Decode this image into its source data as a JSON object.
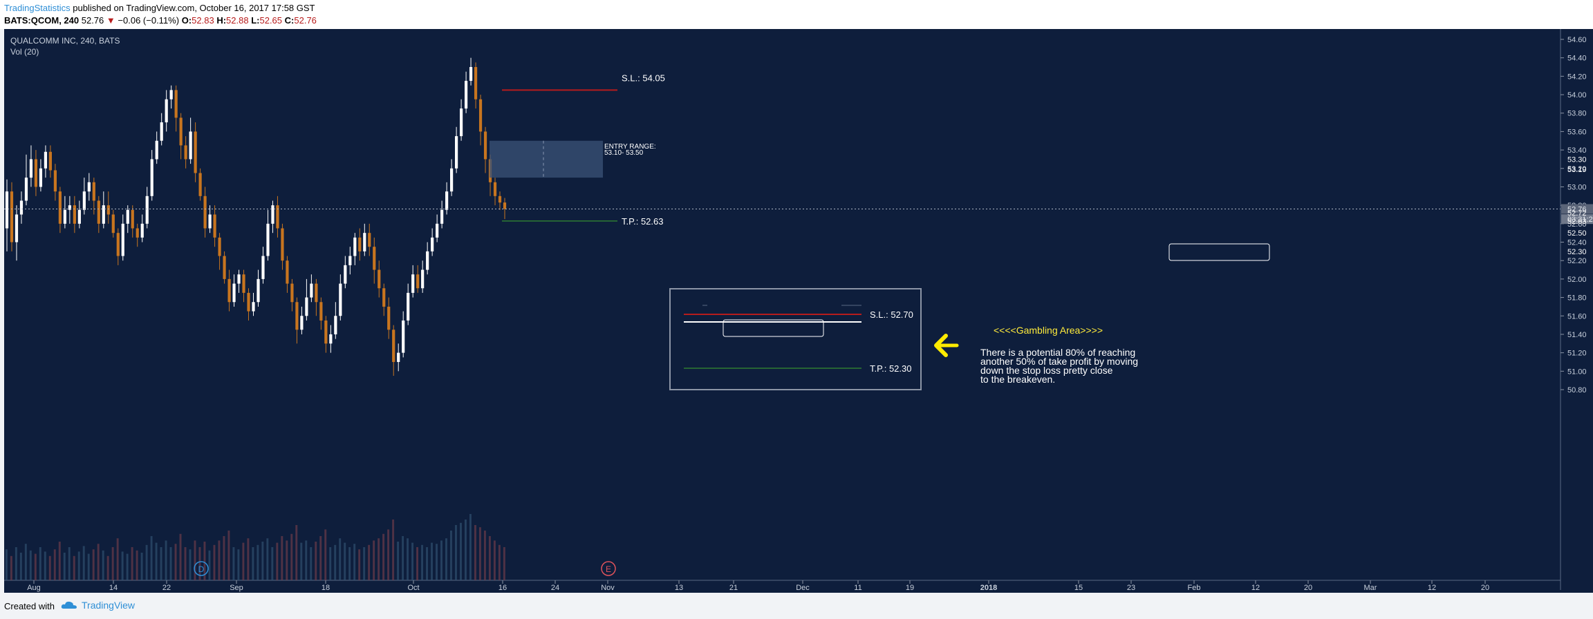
{
  "header": {
    "publisher": "TradingStatistics",
    "published_text": "published on TradingView.com, October 16, 2017 17:58 GST",
    "symbol": "BATS:QCOM, 240",
    "last": "52.76",
    "change": "−0.06 (−0.11%)",
    "o_label": "O:",
    "o_val": "52.83",
    "h_label": "H:",
    "h_val": "52.88",
    "l_label": "L:",
    "l_val": "52.65",
    "c_label": "C:",
    "c_val": "52.76"
  },
  "legend": {
    "title": "QUALCOMM INC, 240, BATS",
    "vol": "Vol (20)"
  },
  "annotations": {
    "sl_high": "S.L.: 54.05",
    "entry_title": "ENTRY RANGE:",
    "entry_range": "53.10- 53.50",
    "tp_high": "T.P.: 52.63",
    "sl_low": "S.L.: 52.70",
    "tp_low": "T.P.: 52.30",
    "gambling": "<<<<Gambling Area>>>>",
    "note": [
      "There is a potential 80% of reaching",
      "another 50% of take profit by moving",
      "down the stop loss pretty close",
      "to the breakeven."
    ]
  },
  "markers": {
    "d": "D",
    "e": "E"
  },
  "colors": {
    "background": "#0e1e3c",
    "up": "#ffffff",
    "down": "#c8751f",
    "sl": "#b71c1c",
    "tp": "#2e7d32",
    "arrow": "#ffeb00",
    "gambling_text": "#ffeb3b"
  },
  "chart_data": {
    "type": "candlestick",
    "title": "QUALCOMM INC, 240, BATS",
    "y_ticks": [
      "54.60",
      "54.40",
      "54.20",
      "54.00",
      "53.80",
      "53.60",
      "53.40",
      "53.20",
      "53.00",
      "52.80",
      "52.60",
      "52.40",
      "52.20",
      "52.00",
      "51.80",
      "51.60",
      "51.40",
      "51.20",
      "51.00",
      "50.80"
    ],
    "ylim": [
      50.8,
      54.6
    ],
    "x_ticks": [
      "Aug",
      "14",
      "22",
      "Sep",
      "18",
      "Oct",
      "16",
      "24",
      "Nov",
      "13",
      "21",
      "Dec",
      "11",
      "19",
      "2018",
      "15",
      "23",
      "Feb",
      "12",
      "20",
      "Mar",
      "12",
      "20"
    ],
    "price_labels": [
      {
        "label": "53.30",
        "value": 53.3,
        "kind": "plain"
      },
      {
        "label": "53.19",
        "value": 53.19,
        "kind": "plain"
      },
      {
        "label": "52.76",
        "value": 52.76,
        "kind": "current"
      },
      {
        "label": "03:31:2",
        "value": 52.65,
        "kind": "timer"
      },
      {
        "label": "52.72",
        "value": 52.72,
        "kind": "plain"
      },
      {
        "label": "52.63",
        "value": 52.63,
        "kind": "plain"
      },
      {
        "label": "52.50",
        "value": 52.5,
        "kind": "plain"
      },
      {
        "label": "52.30",
        "value": 52.3,
        "kind": "plain"
      }
    ],
    "current_price": 52.76,
    "levels": {
      "sl_high": 54.05,
      "entry_low": 53.1,
      "entry_high": 53.5,
      "tp_high": 52.63,
      "sl_low": 52.7,
      "tp_low": 52.3
    },
    "candles": [
      [
        52.55,
        52.95,
        53.08,
        52.3
      ],
      [
        52.95,
        52.4,
        53.05,
        52.3
      ],
      [
        52.4,
        52.7,
        52.8,
        52.2
      ],
      [
        52.7,
        52.85,
        52.95,
        52.6
      ],
      [
        52.85,
        53.1,
        53.35,
        52.8
      ],
      [
        53.1,
        53.3,
        53.45,
        53.0
      ],
      [
        53.3,
        53.0,
        53.4,
        52.9
      ],
      [
        53.0,
        53.2,
        53.3,
        52.95
      ],
      [
        53.2,
        53.38,
        53.45,
        53.1
      ],
      [
        53.38,
        53.18,
        53.45,
        53.1
      ],
      [
        53.18,
        52.95,
        53.25,
        52.85
      ],
      [
        52.95,
        52.6,
        53.0,
        52.5
      ],
      [
        52.6,
        52.75,
        52.9,
        52.55
      ],
      [
        52.75,
        52.8,
        52.9,
        52.6
      ],
      [
        52.8,
        52.6,
        52.9,
        52.5
      ],
      [
        52.6,
        52.75,
        52.85,
        52.55
      ],
      [
        52.75,
        52.95,
        53.1,
        52.7
      ],
      [
        52.95,
        53.05,
        53.15,
        52.85
      ],
      [
        53.05,
        52.85,
        53.1,
        52.7
      ],
      [
        52.85,
        52.6,
        52.9,
        52.5
      ],
      [
        52.6,
        52.8,
        52.95,
        52.55
      ],
      [
        52.8,
        52.7,
        52.95,
        52.6
      ],
      [
        52.7,
        52.5,
        52.75,
        52.45
      ],
      [
        52.5,
        52.25,
        52.55,
        52.15
      ],
      [
        52.25,
        52.6,
        52.7,
        52.2
      ],
      [
        52.6,
        52.75,
        52.8,
        52.5
      ],
      [
        52.75,
        52.55,
        52.8,
        52.45
      ],
      [
        52.55,
        52.45,
        52.6,
        52.35
      ],
      [
        52.45,
        52.6,
        52.7,
        52.4
      ],
      [
        52.6,
        52.9,
        53.0,
        52.55
      ],
      [
        52.9,
        53.3,
        53.4,
        52.85
      ],
      [
        53.3,
        53.5,
        53.6,
        53.25
      ],
      [
        53.5,
        53.7,
        53.8,
        53.45
      ],
      [
        53.7,
        53.95,
        54.05,
        53.6
      ],
      [
        53.95,
        54.05,
        54.1,
        53.85
      ],
      [
        54.05,
        53.75,
        54.1,
        53.6
      ],
      [
        53.75,
        53.45,
        53.8,
        53.3
      ],
      [
        53.45,
        53.3,
        53.55,
        53.2
      ],
      [
        53.3,
        53.6,
        53.75,
        53.25
      ],
      [
        53.6,
        53.15,
        53.7,
        53.05
      ],
      [
        53.15,
        52.9,
        53.2,
        52.85
      ],
      [
        52.9,
        52.55,
        53.0,
        52.45
      ],
      [
        52.55,
        52.7,
        52.8,
        52.5
      ],
      [
        52.7,
        52.45,
        52.8,
        52.35
      ],
      [
        52.45,
        52.25,
        52.5,
        52.1
      ],
      [
        52.25,
        52.0,
        52.3,
        51.95
      ],
      [
        52.0,
        51.75,
        52.1,
        51.65
      ],
      [
        51.75,
        51.95,
        52.05,
        51.7
      ],
      [
        51.95,
        52.05,
        52.1,
        51.85
      ],
      [
        52.05,
        51.85,
        52.1,
        51.75
      ],
      [
        51.85,
        51.65,
        51.9,
        51.55
      ],
      [
        51.65,
        51.75,
        51.85,
        51.6
      ],
      [
        51.75,
        52.0,
        52.1,
        51.7
      ],
      [
        52.0,
        52.25,
        52.35,
        51.95
      ],
      [
        52.25,
        52.6,
        52.75,
        52.2
      ],
      [
        52.6,
        52.8,
        52.85,
        52.5
      ],
      [
        52.8,
        52.55,
        52.9,
        52.45
      ],
      [
        52.55,
        52.2,
        52.6,
        52.1
      ],
      [
        52.2,
        51.95,
        52.25,
        51.85
      ],
      [
        51.95,
        51.75,
        52.0,
        51.65
      ],
      [
        51.75,
        51.45,
        51.8,
        51.3
      ],
      [
        51.45,
        51.6,
        51.7,
        51.4
      ],
      [
        51.6,
        51.8,
        52.0,
        51.55
      ],
      [
        51.8,
        51.95,
        52.05,
        51.75
      ],
      [
        51.95,
        51.75,
        52.0,
        51.6
      ],
      [
        51.75,
        51.55,
        51.8,
        51.45
      ],
      [
        51.55,
        51.3,
        51.6,
        51.2
      ],
      [
        51.3,
        51.4,
        51.5,
        51.2
      ],
      [
        51.4,
        51.6,
        51.75,
        51.35
      ],
      [
        51.6,
        51.95,
        52.05,
        51.55
      ],
      [
        51.95,
        52.15,
        52.25,
        51.9
      ],
      [
        52.15,
        52.25,
        52.35,
        52.05
      ],
      [
        52.25,
        52.45,
        52.5,
        52.15
      ],
      [
        52.45,
        52.3,
        52.55,
        52.2
      ],
      [
        52.3,
        52.5,
        52.6,
        52.25
      ],
      [
        52.5,
        52.35,
        52.6,
        52.25
      ],
      [
        52.35,
        52.1,
        52.45,
        51.95
      ],
      [
        52.1,
        51.9,
        52.2,
        51.8
      ],
      [
        51.9,
        51.7,
        51.95,
        51.6
      ],
      [
        51.7,
        51.45,
        51.8,
        51.35
      ],
      [
        51.45,
        51.1,
        51.5,
        50.95
      ],
      [
        51.1,
        51.2,
        51.3,
        51.0
      ],
      [
        51.2,
        51.55,
        51.65,
        51.15
      ],
      [
        51.55,
        51.85,
        51.95,
        51.5
      ],
      [
        51.85,
        52.05,
        52.15,
        51.8
      ],
      [
        52.05,
        51.9,
        52.15,
        51.85
      ],
      [
        51.9,
        52.1,
        52.2,
        51.85
      ],
      [
        52.1,
        52.3,
        52.4,
        52.05
      ],
      [
        52.3,
        52.45,
        52.55,
        52.25
      ],
      [
        52.45,
        52.6,
        52.7,
        52.4
      ],
      [
        52.6,
        52.75,
        52.85,
        52.55
      ],
      [
        52.75,
        52.95,
        53.05,
        52.7
      ],
      [
        52.95,
        53.2,
        53.3,
        52.9
      ],
      [
        53.2,
        53.55,
        53.65,
        53.15
      ],
      [
        53.55,
        53.85,
        53.95,
        53.5
      ],
      [
        53.85,
        54.15,
        54.25,
        53.8
      ],
      [
        54.15,
        54.3,
        54.4,
        54.1
      ],
      [
        54.3,
        53.95,
        54.35,
        53.85
      ],
      [
        53.95,
        53.6,
        54.0,
        53.45
      ],
      [
        53.6,
        53.3,
        53.65,
        53.15
      ],
      [
        53.3,
        53.05,
        53.35,
        52.9
      ],
      [
        53.05,
        52.9,
        53.1,
        52.8
      ],
      [
        52.9,
        52.83,
        52.95,
        52.75
      ],
      [
        52.83,
        52.76,
        52.88,
        52.65
      ]
    ],
    "volumes": [
      0.28,
      0.22,
      0.3,
      0.25,
      0.33,
      0.27,
      0.24,
      0.3,
      0.26,
      0.22,
      0.28,
      0.35,
      0.25,
      0.3,
      0.22,
      0.26,
      0.31,
      0.24,
      0.28,
      0.33,
      0.27,
      0.22,
      0.3,
      0.38,
      0.26,
      0.24,
      0.3,
      0.27,
      0.25,
      0.32,
      0.4,
      0.34,
      0.3,
      0.36,
      0.3,
      0.33,
      0.42,
      0.3,
      0.28,
      0.36,
      0.3,
      0.35,
      0.27,
      0.32,
      0.36,
      0.4,
      0.45,
      0.3,
      0.28,
      0.34,
      0.38,
      0.3,
      0.32,
      0.35,
      0.38,
      0.3,
      0.34,
      0.4,
      0.36,
      0.42,
      0.5,
      0.34,
      0.36,
      0.3,
      0.35,
      0.4,
      0.46,
      0.3,
      0.32,
      0.38,
      0.34,
      0.3,
      0.33,
      0.28,
      0.3,
      0.32,
      0.36,
      0.38,
      0.42,
      0.46,
      0.55,
      0.35,
      0.4,
      0.38,
      0.34,
      0.3,
      0.32,
      0.3,
      0.34,
      0.33,
      0.36,
      0.38,
      0.45,
      0.5,
      0.52,
      0.55,
      0.6,
      0.5,
      0.48,
      0.45,
      0.4,
      0.36,
      0.32,
      0.3
    ]
  }
}
